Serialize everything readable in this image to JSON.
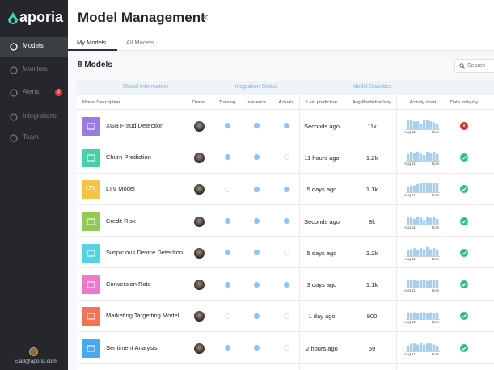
{
  "sidebar": {
    "logo": "aporia",
    "nav": [
      {
        "label": "Models",
        "active": true
      },
      {
        "label": "Monitors",
        "active": false
      },
      {
        "label": "Alerts",
        "active": false,
        "badge": "2"
      },
      {
        "label": "Integrations",
        "active": false
      },
      {
        "label": "Team",
        "active": false
      }
    ],
    "user": "Elad@aporia.com"
  },
  "header": {
    "title": "Model Management"
  },
  "tabs": [
    {
      "label": "My Models",
      "active": true
    },
    {
      "label": "All Models",
      "active": false
    }
  ],
  "toolbar": {
    "count": "8 Models",
    "search": "Search"
  },
  "table": {
    "groups": [
      "Model Information",
      "Integration Status",
      "Model Statistics"
    ],
    "columns": [
      "Model Description",
      "Owner",
      "Training",
      "Inference",
      "Actuals",
      "Last prediction",
      "Avg Prediction/day",
      "Activity chart",
      "Data Integrity"
    ],
    "activity_labels": {
      "start": "Aug 11",
      "end": "Now"
    },
    "rows": [
      {
        "name": "XGB Fraud Detection",
        "color": "#9b7be0",
        "training": true,
        "inference": true,
        "actuals": true,
        "last": "Seconds ago",
        "avg": "11k",
        "activity": [
          8,
          8,
          7,
          7,
          5,
          8,
          8,
          7,
          6,
          5
        ],
        "integrity": false
      },
      {
        "name": "Churn Prediction",
        "color": "#48cfa8",
        "training": true,
        "inference": true,
        "actuals": false,
        "last": "11 hours ago",
        "avg": "1.2k",
        "activity": [
          6,
          8,
          7,
          8,
          6,
          5,
          8,
          7,
          8,
          6
        ],
        "integrity": true
      },
      {
        "name": "LTV Model",
        "icon_text": "LTV",
        "color": "#f6c445",
        "training": false,
        "inference": true,
        "actuals": true,
        "last": "5 days ago",
        "avg": "1.1k",
        "activity": [
          5,
          6,
          6,
          7,
          8,
          8,
          8,
          8,
          8,
          8
        ],
        "integrity": true
      },
      {
        "name": "Credit Risk",
        "color": "#93c957",
        "training": true,
        "inference": true,
        "actuals": true,
        "last": "Seconds ago",
        "avg": "8k",
        "activity": [
          7,
          6,
          5,
          7,
          6,
          4,
          7,
          6,
          7,
          5
        ],
        "integrity": true
      },
      {
        "name": "Suspicious Device Detection",
        "color": "#55d3e2",
        "training": true,
        "inference": true,
        "actuals": false,
        "last": "5 days ago",
        "avg": "3.2k",
        "activity": [
          5,
          6,
          7,
          5,
          7,
          6,
          8,
          6,
          7,
          6
        ],
        "integrity": true
      },
      {
        "name": "Conversion Rate",
        "color": "#ec79cb",
        "training": true,
        "inference": true,
        "actuals": true,
        "last": "3 days ago",
        "avg": "1.1k",
        "activity": [
          7,
          7,
          7,
          6,
          7,
          7,
          6,
          7,
          7,
          7
        ],
        "integrity": true
      },
      {
        "name": "Marketing Targetting Model...",
        "color": "#f27456",
        "training": false,
        "inference": true,
        "actuals": false,
        "last": "1 day ago",
        "avg": "900",
        "activity": [
          6,
          5,
          6,
          5,
          6,
          6,
          5,
          6,
          5,
          6
        ],
        "integrity": true
      },
      {
        "name": "Sentiment Analysis",
        "color": "#4aa8f0",
        "training": true,
        "inference": true,
        "actuals": false,
        "last": "2 hours ago",
        "avg": "59",
        "activity": [
          5,
          7,
          7,
          6,
          8,
          6,
          7,
          7,
          6,
          5
        ],
        "integrity": true
      }
    ]
  }
}
